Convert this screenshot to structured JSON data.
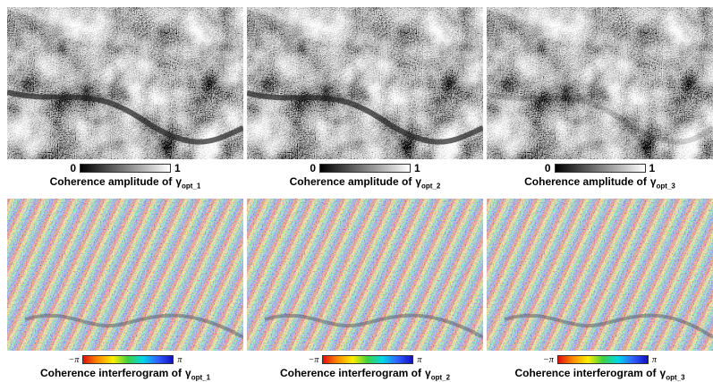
{
  "figure": {
    "rows": [
      {
        "panels": [
          {
            "scale_min": "0",
            "scale_max": "1",
            "caption": "Coherence amplitude of",
            "symbol": "γ",
            "subscript": "opt_1"
          },
          {
            "scale_min": "0",
            "scale_max": "1",
            "caption": "Coherence amplitude of",
            "symbol": "γ",
            "subscript": "opt_2"
          },
          {
            "scale_min": "0",
            "scale_max": "1",
            "caption": "Coherence amplitude of",
            "symbol": "γ",
            "subscript": "opt_3"
          }
        ]
      },
      {
        "panels": [
          {
            "scale_min": "−π",
            "scale_max": "π",
            "caption": "Coherence interferogram of",
            "symbol": "γ",
            "subscript": "opt_1"
          },
          {
            "scale_min": "−π",
            "scale_max": "π",
            "caption": "Coherence interferogram of",
            "symbol": "γ",
            "subscript": "opt_2"
          },
          {
            "scale_min": "−π",
            "scale_max": "π",
            "caption": "Coherence interferogram of",
            "symbol": "γ",
            "subscript": "opt_3"
          }
        ]
      }
    ]
  }
}
